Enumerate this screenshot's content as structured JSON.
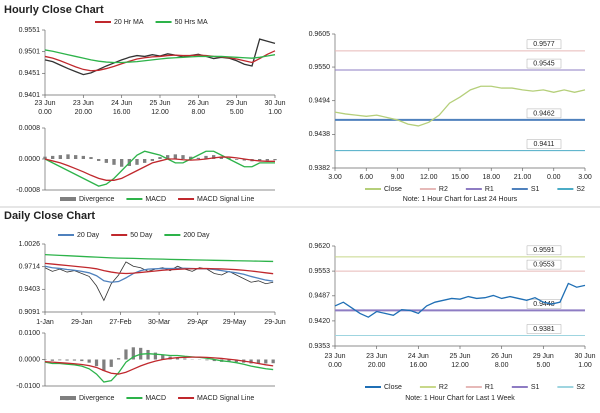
{
  "headings": [
    "Hourly Close Chart",
    "Daily Close Chart"
  ],
  "chart_data": [
    {
      "type": "line",
      "x": [
        0,
        4,
        8,
        12,
        16,
        20,
        24,
        28,
        32,
        36,
        40,
        44,
        48,
        52,
        56,
        60,
        64,
        68,
        72,
        76,
        80,
        84,
        88,
        92,
        96,
        100,
        104,
        108,
        112,
        116,
        120
      ],
      "xlim": [
        0,
        120
      ],
      "xticks": [
        {
          "value": 0,
          "label": [
            "23 Jun",
            "0.00"
          ]
        },
        {
          "value": 20,
          "label": [
            "23 Jun",
            "20.00"
          ]
        },
        {
          "value": 40,
          "label": [
            "24 Jun",
            "16.00"
          ]
        },
        {
          "value": 60,
          "label": [
            "25 Jun",
            "12.00"
          ]
        },
        {
          "value": 80,
          "label": [
            "26 Jun",
            "8.00"
          ]
        },
        {
          "value": 100,
          "label": [
            "29 Jun",
            "5.00"
          ]
        },
        {
          "value": 120,
          "label": [
            "30 Jun",
            "1.00"
          ]
        }
      ],
      "ylim": [
        0.9401,
        0.9551
      ],
      "yticks": [
        0.9401,
        0.9451,
        0.9501,
        0.9551
      ],
      "series": [
        {
          "color": "#333333",
          "values": [
            0.9482,
            0.9478,
            0.947,
            0.9462,
            0.9455,
            0.9448,
            0.9452,
            0.946,
            0.9468,
            0.9475,
            0.9482,
            0.9488,
            0.9492,
            0.949,
            0.9494,
            0.9491,
            0.9496,
            0.9493,
            0.9489,
            0.9492,
            0.9495,
            0.949,
            0.9485,
            0.9488,
            0.9486,
            0.948,
            0.9472,
            0.9468,
            0.953,
            0.9525,
            0.952
          ]
        },
        {
          "name": "20 Hr MA",
          "color": "#c0282d",
          "values": [
            0.949,
            0.9486,
            0.948,
            0.9473,
            0.9466,
            0.946,
            0.9457,
            0.9458,
            0.9462,
            0.9467,
            0.9473,
            0.9479,
            0.9484,
            0.9487,
            0.9489,
            0.949,
            0.9492,
            0.9493,
            0.9492,
            0.9492,
            0.9493,
            0.9492,
            0.949,
            0.9489,
            0.9487,
            0.9484,
            0.948,
            0.9476,
            0.9485,
            0.9495,
            0.9503
          ]
        },
        {
          "name": "50 Hrs MA",
          "color": "#2db34a",
          "values": [
            0.9505,
            0.9502,
            0.9498,
            0.9494,
            0.949,
            0.9486,
            0.9482,
            0.9479,
            0.9477,
            0.9476,
            0.9476,
            0.9477,
            0.9478,
            0.948,
            0.9482,
            0.9484,
            0.9486,
            0.9487,
            0.9488,
            0.9489,
            0.949,
            0.949,
            0.949,
            0.949,
            0.9489,
            0.9488,
            0.9487,
            0.9486,
            0.9488,
            0.9491,
            0.9494
          ]
        }
      ]
    },
    {
      "type": "line",
      "x": [
        0,
        4,
        8,
        12,
        16,
        20,
        24,
        28,
        32,
        36,
        40,
        44,
        48,
        52,
        56,
        60,
        64,
        68,
        72,
        76,
        80,
        84,
        88,
        92,
        96,
        100,
        104,
        108,
        112,
        116,
        120
      ],
      "xlim": [
        0,
        120
      ],
      "ylim": [
        -0.0008,
        0.0008
      ],
      "yticks": [
        -0.0008,
        {
          "value": 0,
          "label": "0.0000"
        },
        0.0008
      ],
      "series": [
        {
          "name": "Divergence",
          "type": "bar",
          "color": "#7f7f7f",
          "values": [
            6e-05,
            8e-05,
            0.0001,
            0.00012,
            0.0001,
            8e-05,
            5e-05,
            -5e-05,
            -0.0001,
            -0.00015,
            -0.0002,
            -0.00018,
            -0.00015,
            -0.0001,
            -5e-05,
            5e-05,
            0.0001,
            0.00012,
            0.0001,
            6e-05,
            3e-05,
            8e-05,
            0.0001,
            6e-05,
            3e-05,
            -2e-05,
            -4e-05,
            -6e-05,
            -5e-05,
            -4e-05,
            -3e-05
          ]
        },
        {
          "name": "MACD",
          "color": "#2db34a",
          "values": [
            0,
            -0.0001,
            -0.0002,
            -0.0003,
            -0.0004,
            -0.0005,
            -0.0006,
            -0.0007,
            -0.00065,
            -0.0005,
            -0.0003,
            -0.0001,
            0.0001,
            0.0002,
            0.00015,
            0.0001,
            0,
            -0.0001,
            -0.0001,
            0,
            0.0001,
            0.0002,
            0.0002,
            0.0001,
            0,
            -0.0001,
            -0.0002,
            -0.0002,
            -0.0001,
            -0.0001,
            -0.0001
          ]
        },
        {
          "name": "MACD Signal Line",
          "color": "#c0282d",
          "values": [
            0,
            -5e-05,
            -0.0001,
            -0.00017,
            -0.00025,
            -0.00033,
            -0.00042,
            -0.0005,
            -0.00055,
            -0.00055,
            -0.0005,
            -0.0004,
            -0.0003,
            -0.0002,
            -0.0001,
            -5e-05,
            0,
            0,
            -2e-05,
            -3e-05,
            -2e-05,
            0,
            3e-05,
            5e-05,
            5e-05,
            3e-05,
            0,
            -3e-05,
            -5e-05,
            -6e-05,
            -6e-05
          ]
        }
      ]
    },
    {
      "type": "pivot",
      "x": [
        0,
        1,
        2,
        3,
        4,
        5,
        6,
        7,
        8,
        9,
        10,
        11,
        12,
        13,
        14,
        15,
        16,
        17,
        18,
        19,
        20,
        21,
        22,
        23,
        24
      ],
      "xlim": [
        0,
        24
      ],
      "xticks": [
        {
          "value": 0,
          "label": "3.00"
        },
        {
          "value": 3,
          "label": "6.00"
        },
        {
          "value": 6,
          "label": "9.00"
        },
        {
          "value": 9,
          "label": "12.00"
        },
        {
          "value": 12,
          "label": "15.00"
        },
        {
          "value": 15,
          "label": "18.00"
        },
        {
          "value": 18,
          "label": "21.00"
        },
        {
          "value": 21,
          "label": "0.00"
        },
        {
          "value": 24,
          "label": "3.00"
        }
      ],
      "ylim": [
        0.9382,
        0.9605
      ],
      "yticks": [
        0.9382,
        0.9438,
        0.9494,
        {
          "value": 0.955,
          "label": "0.9550"
        },
        0.9605
      ],
      "series": [
        {
          "name": "Close",
          "color": "#b5cf7a",
          "values": [
            0.9475,
            0.9472,
            0.947,
            0.9468,
            0.947,
            0.9466,
            0.9462,
            0.9455,
            0.9452,
            0.9458,
            0.947,
            0.949,
            0.95,
            0.9512,
            0.9518,
            0.9518,
            0.9515,
            0.9515,
            0.9512,
            0.951,
            0.9512,
            0.9508,
            0.9512,
            0.9508,
            0.9512
          ]
        }
      ],
      "levels": [
        {
          "name": "R2",
          "color": "#e6b9b8",
          "value": 0.9577
        },
        {
          "name": "R1",
          "color": "#8e7cc3",
          "value": 0.9545
        },
        {
          "name": "S1",
          "color": "#4f81bd",
          "value": 0.9462
        },
        {
          "name": "S2",
          "color": "#4bacc6",
          "value": 0.9411
        }
      ],
      "note": "Note: 1 Hour Chart for Last 24 Hours"
    },
    {
      "type": "line",
      "x": [
        0,
        4,
        8,
        12,
        16,
        20,
        24,
        28,
        32,
        36,
        40,
        44,
        48,
        52,
        56,
        60,
        64,
        68,
        72,
        76,
        80,
        84,
        88,
        92,
        96,
        100,
        104,
        108,
        112,
        116,
        120,
        124
      ],
      "xlim": [
        0,
        125
      ],
      "xticks": [
        {
          "value": 0,
          "label": "1-Jan"
        },
        {
          "value": 20,
          "label": "29-Jan"
        },
        {
          "value": 41,
          "label": "27-Feb"
        },
        {
          "value": 62,
          "label": "30-Mar"
        },
        {
          "value": 83,
          "label": "29-Apr"
        },
        {
          "value": 103,
          "label": "29-May"
        },
        {
          "value": 125,
          "label": "29-Jun"
        }
      ],
      "ylim": [
        0.9091,
        1.0026
      ],
      "yticks": [
        0.9091,
        0.9403,
        0.9714,
        1.0026
      ],
      "series": [
        {
          "color": "#333333",
          "values": [
            0.97,
            0.965,
            0.968,
            0.964,
            0.966,
            0.962,
            0.958,
            0.945,
            0.925,
            0.948,
            0.96,
            0.978,
            0.972,
            0.97,
            0.965,
            0.968,
            0.97,
            0.966,
            0.972,
            0.968,
            0.965,
            0.97,
            0.968,
            0.962,
            0.96,
            0.965,
            0.96,
            0.955,
            0.95,
            0.952,
            0.948,
            0.95
          ]
        },
        {
          "name": "20 Day",
          "color": "#4f81bd",
          "values": [
            0.972,
            0.97,
            0.969,
            0.9675,
            0.9665,
            0.965,
            0.963,
            0.959,
            0.952,
            0.95,
            0.951,
            0.956,
            0.962,
            0.966,
            0.968,
            0.9685,
            0.969,
            0.9688,
            0.969,
            0.9692,
            0.9688,
            0.9686,
            0.9684,
            0.9675,
            0.966,
            0.9645,
            0.963,
            0.961,
            0.958,
            0.9555,
            0.953,
            0.9515
          ]
        },
        {
          "name": "50 Day",
          "color": "#c0282d",
          "values": [
            0.976,
            0.975,
            0.974,
            0.973,
            0.972,
            0.971,
            0.97,
            0.9685,
            0.966,
            0.964,
            0.9625,
            0.962,
            0.9625,
            0.9635,
            0.9645,
            0.9655,
            0.9665,
            0.9672,
            0.9678,
            0.9683,
            0.9686,
            0.9688,
            0.9688,
            0.9686,
            0.9683,
            0.9679,
            0.9673,
            0.9665,
            0.9655,
            0.9643,
            0.963,
            0.9618
          ]
        },
        {
          "name": "200 Day",
          "color": "#2db34a",
          "values": [
            0.988,
            0.9875,
            0.987,
            0.9865,
            0.986,
            0.9855,
            0.985,
            0.9845,
            0.984,
            0.9835,
            0.9832,
            0.983,
            0.9828,
            0.9825,
            0.9822,
            0.982,
            0.9818,
            0.9815,
            0.9812,
            0.981,
            0.9808,
            0.9806,
            0.9804,
            0.9802,
            0.98,
            0.9798,
            0.9796,
            0.9794,
            0.9792,
            0.979,
            0.9788,
            0.9786
          ]
        }
      ]
    },
    {
      "type": "line",
      "x": [
        0,
        4,
        8,
        12,
        16,
        20,
        24,
        28,
        32,
        36,
        40,
        44,
        48,
        52,
        56,
        60,
        64,
        68,
        72,
        76,
        80,
        84,
        88,
        92,
        96,
        100,
        104,
        108,
        112,
        116,
        120,
        124
      ],
      "xlim": [
        0,
        125
      ],
      "ylim": [
        -0.01,
        0.01
      ],
      "yticks": [
        {
          "value": 0.01,
          "label": "0.0100"
        },
        {
          "value": 0,
          "label": "0.0000"
        },
        {
          "value": -0.01,
          "label": "-0.0100"
        }
      ],
      "series": [
        {
          "name": "Divergence",
          "type": "bar",
          "color": "#7f7f7f",
          "values": [
            -0.0002,
            -0.0005,
            -0.0003,
            -0.0004,
            -0.0004,
            -0.0006,
            -0.0012,
            -0.0025,
            -0.0043,
            -0.0028,
            0.0005,
            0.0038,
            0.0046,
            0.0044,
            0.0036,
            0.0026,
            0.0018,
            0.0011,
            0.0008,
            0.0004,
            0.0001,
            -0.0001,
            -0.0003,
            -0.0006,
            -0.0009,
            -0.0009,
            -0.001,
            -0.0012,
            -0.0015,
            -0.0015,
            -0.0015,
            -0.0014
          ]
        },
        {
          "name": "MACD",
          "color": "#2db34a",
          "values": [
            -0.001,
            -0.0015,
            -0.0015,
            -0.0018,
            -0.002,
            -0.0025,
            -0.0035,
            -0.0055,
            -0.0085,
            -0.008,
            -0.005,
            -0.001,
            0.001,
            0.002,
            0.0022,
            0.002,
            0.0018,
            0.0015,
            0.0015,
            0.0012,
            0.001,
            0.0008,
            0.0005,
            0,
            -0.0005,
            -0.0008,
            -0.0012,
            -0.0018,
            -0.0025,
            -0.003,
            -0.0035,
            -0.0038
          ]
        },
        {
          "name": "MACD Signal Line",
          "color": "#c0282d",
          "values": [
            -0.0008,
            -0.001,
            -0.0012,
            -0.0014,
            -0.0016,
            -0.0019,
            -0.0023,
            -0.003,
            -0.0042,
            -0.0052,
            -0.0055,
            -0.0048,
            -0.0036,
            -0.0024,
            -0.0014,
            -0.0006,
            0,
            0.0004,
            0.0007,
            0.0008,
            0.0009,
            0.0009,
            0.0008,
            0.0006,
            0.0004,
            0.0001,
            -0.0002,
            -0.0006,
            -0.001,
            -0.0015,
            -0.002,
            -0.0024
          ]
        }
      ]
    },
    {
      "type": "pivot",
      "x": [
        0,
        4,
        8,
        12,
        16,
        20,
        24,
        28,
        32,
        36,
        40,
        44,
        48,
        52,
        56,
        60,
        64,
        68,
        72,
        76,
        80,
        84,
        88,
        92,
        96,
        100,
        104,
        108,
        112,
        116,
        120
      ],
      "xlim": [
        0,
        120
      ],
      "xticks": [
        {
          "value": 0,
          "label": [
            "23 Jun",
            "0.00"
          ]
        },
        {
          "value": 20,
          "label": [
            "23 Jun",
            "20.00"
          ]
        },
        {
          "value": 40,
          "label": [
            "24 Jun",
            "16.00"
          ]
        },
        {
          "value": 60,
          "label": [
            "25 Jun",
            "12.00"
          ]
        },
        {
          "value": 80,
          "label": [
            "26 Jun",
            "8.00"
          ]
        },
        {
          "value": 100,
          "label": [
            "29 Jun",
            "5.00"
          ]
        },
        {
          "value": 120,
          "label": [
            "30 Jun",
            "1.00"
          ]
        }
      ],
      "ylim": [
        0.9353,
        0.962
      ],
      "yticks": [
        0.9353,
        {
          "value": 0.942,
          "label": "0.9420"
        },
        0.9487,
        0.9553,
        {
          "value": 0.962,
          "label": "0.9620"
        }
      ],
      "series": [
        {
          "name": "Close",
          "color": "#1f6fb5",
          "values": [
            0.946,
            0.947,
            0.9455,
            0.944,
            0.943,
            0.9445,
            0.944,
            0.9435,
            0.945,
            0.9448,
            0.944,
            0.946,
            0.947,
            0.9475,
            0.948,
            0.9478,
            0.9485,
            0.948,
            0.9482,
            0.9488,
            0.948,
            0.9485,
            0.948,
            0.9475,
            0.9482,
            0.947,
            0.9465,
            0.947,
            0.952,
            0.951,
            0.9515
          ]
        }
      ],
      "levels": [
        {
          "name": "R2",
          "color": "#c8d88a",
          "value": 0.9591
        },
        {
          "name": "R1",
          "color": "#e6b9b8",
          "value": 0.9553
        },
        {
          "name": "S1",
          "color": "#8e7cc3",
          "value": 0.9448
        },
        {
          "name": "S2",
          "color": "#9fd5e0",
          "value": 0.9381
        }
      ],
      "note": "Note: 1 Hour Chart for Last 1 Week"
    }
  ]
}
